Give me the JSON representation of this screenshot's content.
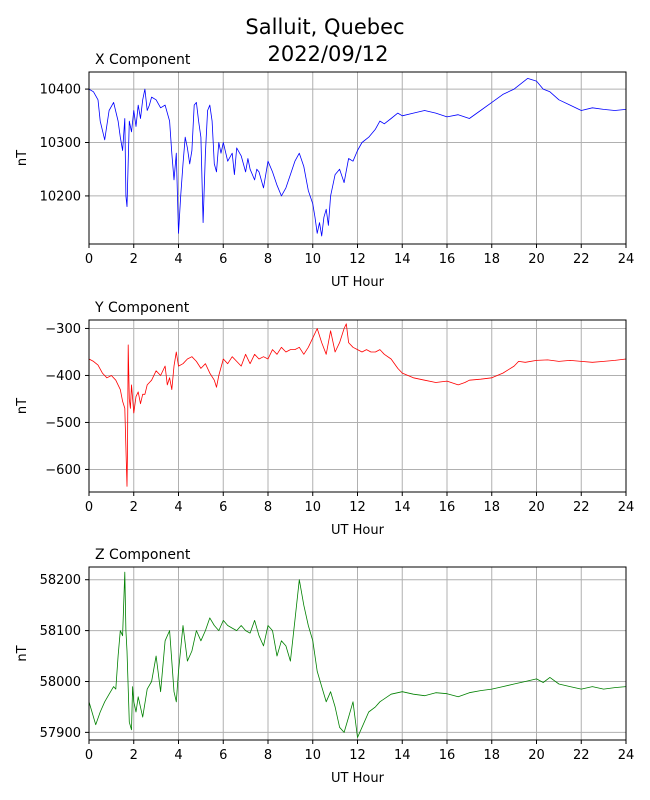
{
  "figure": {
    "title_line1": "Salluit, Quebec",
    "title_line2": "2022/09/12"
  },
  "chart_data": [
    {
      "type": "line",
      "title": "X Component",
      "xlabel": "UT Hour",
      "ylabel": "nT",
      "color": "#0000ff",
      "xlim": [
        0,
        24
      ],
      "ylim": [
        10110,
        10432
      ],
      "xticks": [
        0,
        2,
        4,
        6,
        8,
        10,
        12,
        14,
        16,
        18,
        20,
        22,
        24
      ],
      "yticks": [
        10200,
        10300,
        10400
      ],
      "grid": true,
      "series": [
        {
          "x": [
            0,
            0.2,
            0.4,
            0.5,
            0.7,
            0.9,
            1.1,
            1.3,
            1.4,
            1.5,
            1.6,
            1.65,
            1.7,
            1.8,
            1.9,
            2.0,
            2.1,
            2.2,
            2.3,
            2.4,
            2.5,
            2.6,
            2.7,
            2.8,
            3.0,
            3.2,
            3.4,
            3.6,
            3.7,
            3.8,
            3.9,
            4.0,
            4.1,
            4.2,
            4.3,
            4.4,
            4.5,
            4.6,
            4.7,
            4.8,
            4.9,
            5.0,
            5.1,
            5.2,
            5.3,
            5.4,
            5.5,
            5.6,
            5.7,
            5.8,
            5.9,
            6.0,
            6.2,
            6.4,
            6.5,
            6.6,
            6.8,
            7.0,
            7.1,
            7.2,
            7.4,
            7.5,
            7.6,
            7.8,
            8.0,
            8.2,
            8.4,
            8.6,
            8.8,
            9.0,
            9.2,
            9.4,
            9.6,
            9.8,
            10.0,
            10.1,
            10.2,
            10.3,
            10.4,
            10.5,
            10.6,
            10.7,
            10.8,
            11.0,
            11.2,
            11.4,
            11.6,
            11.8,
            12.0,
            12.2,
            12.5,
            12.8,
            13.0,
            13.2,
            13.5,
            13.8,
            14.0,
            14.5,
            15.0,
            15.5,
            16.0,
            16.5,
            17.0,
            17.5,
            18.0,
            18.5,
            19.0,
            19.3,
            19.6,
            20.0,
            20.3,
            20.6,
            21.0,
            21.5,
            22.0,
            22.5,
            23.0,
            23.5,
            24.0
          ],
          "values": [
            10400,
            10395,
            10380,
            10340,
            10305,
            10360,
            10375,
            10340,
            10310,
            10285,
            10345,
            10200,
            10180,
            10340,
            10320,
            10360,
            10330,
            10370,
            10345,
            10380,
            10400,
            10360,
            10370,
            10385,
            10380,
            10365,
            10370,
            10340,
            10280,
            10230,
            10280,
            10130,
            10200,
            10260,
            10310,
            10290,
            10260,
            10285,
            10370,
            10375,
            10340,
            10310,
            10150,
            10280,
            10360,
            10370,
            10340,
            10260,
            10245,
            10300,
            10280,
            10300,
            10265,
            10280,
            10240,
            10290,
            10275,
            10245,
            10270,
            10250,
            10230,
            10250,
            10245,
            10215,
            10265,
            10245,
            10220,
            10200,
            10215,
            10240,
            10265,
            10280,
            10255,
            10210,
            10185,
            10160,
            10130,
            10150,
            10125,
            10160,
            10175,
            10145,
            10200,
            10240,
            10250,
            10225,
            10270,
            10265,
            10285,
            10300,
            10310,
            10325,
            10340,
            10335,
            10345,
            10355,
            10350,
            10355,
            10360,
            10355,
            10348,
            10352,
            10345,
            10360,
            10375,
            10390,
            10400,
            10410,
            10420,
            10415,
            10400,
            10395,
            10380,
            10370,
            10360,
            10365,
            10362,
            10360,
            10362
          ]
        }
      ]
    },
    {
      "type": "line",
      "title": "Y Component",
      "xlabel": "UT Hour",
      "ylabel": "nT",
      "color": "#ff0000",
      "xlim": [
        0,
        24
      ],
      "ylim": [
        -648,
        -282
      ],
      "xticks": [
        0,
        2,
        4,
        6,
        8,
        10,
        12,
        14,
        16,
        18,
        20,
        22,
        24
      ],
      "yticks": [
        -600,
        -500,
        -400,
        -300
      ],
      "grid": true,
      "series": [
        {
          "x": [
            0,
            0.2,
            0.4,
            0.6,
            0.8,
            1.0,
            1.2,
            1.4,
            1.5,
            1.6,
            1.7,
            1.72,
            1.75,
            1.8,
            1.85,
            1.9,
            2.0,
            2.1,
            2.2,
            2.3,
            2.4,
            2.5,
            2.6,
            2.8,
            3.0,
            3.2,
            3.4,
            3.5,
            3.6,
            3.7,
            3.8,
            3.9,
            4.0,
            4.2,
            4.4,
            4.6,
            4.8,
            5.0,
            5.2,
            5.4,
            5.6,
            5.7,
            5.8,
            6.0,
            6.2,
            6.4,
            6.6,
            6.8,
            7.0,
            7.2,
            7.4,
            7.6,
            7.8,
            8.0,
            8.2,
            8.4,
            8.6,
            8.8,
            9.0,
            9.2,
            9.4,
            9.6,
            9.8,
            10.0,
            10.2,
            10.4,
            10.6,
            10.8,
            11.0,
            11.2,
            11.4,
            11.5,
            11.6,
            11.8,
            12.0,
            12.2,
            12.4,
            12.6,
            12.8,
            13.0,
            13.2,
            13.5,
            13.8,
            14.0,
            14.5,
            15.0,
            15.5,
            16.0,
            16.5,
            16.8,
            17.0,
            17.5,
            18.0,
            18.5,
            19.0,
            19.2,
            19.5,
            20.0,
            20.5,
            21.0,
            21.5,
            22.0,
            22.5,
            23.0,
            23.5,
            24.0
          ],
          "values": [
            -365,
            -370,
            -378,
            -395,
            -405,
            -400,
            -410,
            -430,
            -455,
            -470,
            -636,
            -560,
            -335,
            -450,
            -470,
            -420,
            -480,
            -445,
            -435,
            -460,
            -440,
            -440,
            -420,
            -410,
            -390,
            -400,
            -380,
            -420,
            -405,
            -430,
            -380,
            -350,
            -380,
            -375,
            -365,
            -360,
            -370,
            -385,
            -375,
            -395,
            -410,
            -425,
            -400,
            -365,
            -375,
            -360,
            -370,
            -380,
            -355,
            -375,
            -355,
            -365,
            -360,
            -365,
            -345,
            -355,
            -340,
            -350,
            -345,
            -345,
            -340,
            -355,
            -340,
            -320,
            -300,
            -330,
            -355,
            -305,
            -350,
            -330,
            -300,
            -290,
            -330,
            -340,
            -345,
            -350,
            -345,
            -350,
            -350,
            -345,
            -355,
            -365,
            -385,
            -395,
            -405,
            -410,
            -415,
            -412,
            -420,
            -415,
            -410,
            -408,
            -405,
            -395,
            -380,
            -370,
            -372,
            -368,
            -367,
            -370,
            -368,
            -370,
            -372,
            -370,
            -368,
            -365
          ]
        }
      ]
    },
    {
      "type": "line",
      "title": "Z Component",
      "xlabel": "UT Hour",
      "ylabel": "nT",
      "color": "#008000",
      "xlim": [
        0,
        24
      ],
      "ylim": [
        57885,
        58225
      ],
      "xticks": [
        0,
        2,
        4,
        6,
        8,
        10,
        12,
        14,
        16,
        18,
        20,
        22,
        24
      ],
      "yticks": [
        57900,
        58000,
        58100,
        58200
      ],
      "grid": true,
      "series": [
        {
          "x": [
            0,
            0.2,
            0.3,
            0.5,
            0.7,
            0.9,
            1.1,
            1.2,
            1.3,
            1.4,
            1.5,
            1.6,
            1.65,
            1.7,
            1.8,
            1.9,
            1.95,
            2.0,
            2.1,
            2.2,
            2.4,
            2.6,
            2.8,
            3.0,
            3.2,
            3.4,
            3.6,
            3.8,
            3.9,
            4.0,
            4.2,
            4.4,
            4.6,
            4.8,
            5.0,
            5.2,
            5.4,
            5.6,
            5.8,
            6.0,
            6.2,
            6.4,
            6.6,
            6.8,
            7.0,
            7.2,
            7.4,
            7.6,
            7.8,
            8.0,
            8.2,
            8.4,
            8.6,
            8.8,
            9.0,
            9.2,
            9.4,
            9.6,
            9.8,
            10.0,
            10.2,
            10.4,
            10.6,
            10.8,
            11.0,
            11.2,
            11.4,
            11.6,
            11.8,
            12.0,
            12.2,
            12.5,
            12.8,
            13.0,
            13.5,
            14.0,
            14.5,
            15.0,
            15.5,
            16.0,
            16.5,
            17.0,
            17.5,
            18.0,
            18.5,
            19.0,
            19.5,
            20.0,
            20.3,
            20.6,
            21.0,
            21.5,
            22.0,
            22.5,
            23.0,
            23.5,
            24.0
          ],
          "values": [
            57960,
            57930,
            57915,
            57940,
            57960,
            57975,
            57990,
            57985,
            58050,
            58100,
            58090,
            58215,
            58100,
            58060,
            57920,
            57905,
            57990,
            57960,
            57940,
            57970,
            57930,
            57985,
            58000,
            58050,
            57980,
            58080,
            58100,
            57980,
            57960,
            58020,
            58110,
            58040,
            58060,
            58100,
            58080,
            58100,
            58125,
            58110,
            58100,
            58120,
            58110,
            58105,
            58100,
            58110,
            58100,
            58095,
            58120,
            58090,
            58070,
            58110,
            58100,
            58050,
            58080,
            58070,
            58040,
            58120,
            58200,
            58150,
            58110,
            58080,
            58020,
            57990,
            57960,
            57980,
            57950,
            57910,
            57900,
            57930,
            57960,
            57890,
            57910,
            57940,
            57950,
            57960,
            57975,
            57980,
            57975,
            57972,
            57978,
            57976,
            57970,
            57978,
            57982,
            57985,
            57990,
            57995,
            58000,
            58005,
            57998,
            58008,
            57995,
            57990,
            57985,
            57990,
            57985,
            57988,
            57990
          ]
        }
      ]
    }
  ]
}
